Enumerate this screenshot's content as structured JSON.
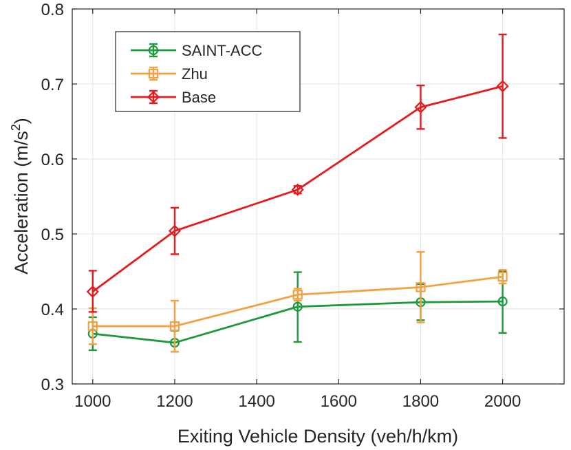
{
  "chart_data": {
    "type": "line",
    "xlabel": "Exiting Vehicle Density (veh/h/km)",
    "ylabel": "Acceleration (m/s",
    "ylabel_superscript": "2",
    "ylabel_close": ")",
    "xlim": [
      950,
      2150
    ],
    "ylim": [
      0.3,
      0.8
    ],
    "xticks": [
      1000,
      1200,
      1400,
      1600,
      1800,
      2000
    ],
    "xtick_labels": [
      "1000",
      "1200",
      "1400",
      "1600",
      "1800",
      "2000"
    ],
    "yticks": [
      0.3,
      0.4,
      0.5,
      0.6,
      0.7,
      0.8
    ],
    "ytick_labels": [
      "0.3",
      "0.4",
      "0.5",
      "0.6",
      "0.7",
      "0.8"
    ],
    "grid": true,
    "legend_position": "top-left",
    "x": [
      1000,
      1200,
      1500,
      1800,
      2000
    ],
    "series": [
      {
        "name": "SAINT-ACC",
        "color": "#1a9a3a",
        "marker": "circle",
        "values": [
          0.367,
          0.355,
          0.403,
          0.409,
          0.41
        ],
        "err_low": [
          0.345,
          0.343,
          0.356,
          0.385,
          0.368
        ],
        "err_high": [
          0.389,
          0.371,
          0.449,
          0.433,
          0.45
        ]
      },
      {
        "name": "Zhu",
        "color": "#f5a040",
        "marker": "square",
        "values": [
          0.377,
          0.377,
          0.419,
          0.429,
          0.443
        ],
        "err_low": [
          0.353,
          0.343,
          0.411,
          0.382,
          0.434
        ],
        "err_high": [
          0.401,
          0.411,
          0.427,
          0.476,
          0.452
        ]
      },
      {
        "name": "Base",
        "color": "#e8191c",
        "marker": "diamond",
        "values": [
          0.423,
          0.504,
          0.559,
          0.669,
          0.697
        ],
        "err_low": [
          0.396,
          0.473,
          0.554,
          0.64,
          0.628
        ],
        "err_high": [
          0.451,
          0.535,
          0.564,
          0.698,
          0.766
        ]
      }
    ]
  }
}
